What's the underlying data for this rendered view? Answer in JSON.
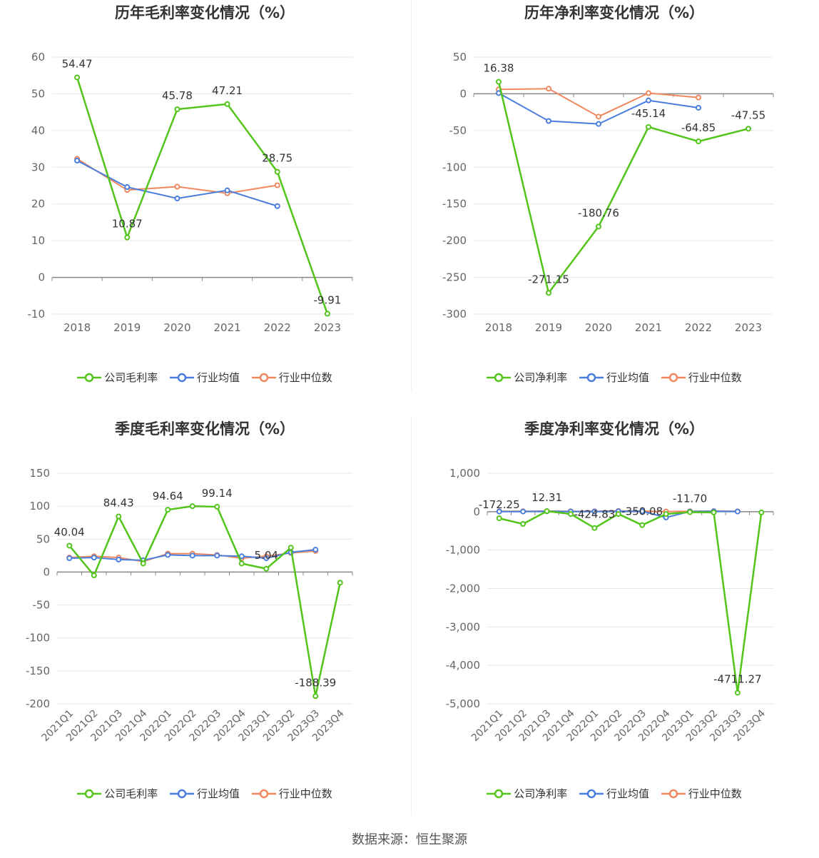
{
  "source": "数据来源：恒生聚源",
  "colors": {
    "company": "#52c41a",
    "avg": "#4a7ede",
    "median": "#f0885f",
    "grid": "#e6e6e6",
    "axis": "#888888",
    "label": "#666666"
  },
  "legend": {
    "company_gross": "公司毛利率",
    "company_net": "公司净利率",
    "avg": "行业均值",
    "median": "行业中位数"
  },
  "chart_data": [
    {
      "type": "line",
      "title": "历年毛利率变化情况（%）",
      "categories": [
        "2018",
        "2019",
        "2020",
        "2021",
        "2022",
        "2023"
      ],
      "ylim": [
        -10,
        60
      ],
      "yticks": [
        60,
        50,
        40,
        30,
        20,
        10,
        0,
        -10
      ],
      "series": [
        {
          "name": "公司毛利率",
          "values": [
            54.47,
            10.87,
            45.78,
            47.21,
            28.75,
            -9.91
          ],
          "labels": [
            "54.47",
            "10.87",
            "45.78",
            "47.21",
            "28.75",
            "-9.91"
          ]
        },
        {
          "name": "行业均值",
          "values": [
            31.8,
            24.6,
            21.5,
            23.7,
            19.4,
            null
          ]
        },
        {
          "name": "行业中位数",
          "values": [
            32.3,
            23.8,
            24.7,
            22.9,
            25.1,
            null
          ]
        }
      ]
    },
    {
      "type": "line",
      "title": "历年净利率变化情况（%）",
      "categories": [
        "2018",
        "2019",
        "2020",
        "2021",
        "2022",
        "2023"
      ],
      "ylim": [
        -300,
        50
      ],
      "yticks": [
        50,
        0,
        -50,
        -100,
        -150,
        -200,
        -250,
        -300
      ],
      "series": [
        {
          "name": "公司净利率",
          "values": [
            16.38,
            -271.15,
            -180.76,
            -45.14,
            -64.85,
            -47.55
          ],
          "labels": [
            "16.38",
            "-271.15",
            "-180.76",
            "-45.14",
            "-64.85",
            "-47.55"
          ]
        },
        {
          "name": "行业均值",
          "values": [
            1,
            -37,
            -41,
            -9,
            -19,
            null
          ]
        },
        {
          "name": "行业中位数",
          "values": [
            6,
            7,
            -31,
            1,
            -5,
            null
          ]
        }
      ]
    },
    {
      "type": "line",
      "title": "季度毛利率变化情况（%）",
      "categories": [
        "2021Q1",
        "2021Q2",
        "2021Q3",
        "2021Q4",
        "2022Q1",
        "2022Q2",
        "2022Q3",
        "2022Q4",
        "2023Q1",
        "2023Q2",
        "2023Q3",
        "2023Q4"
      ],
      "ylim": [
        -200,
        150
      ],
      "yticks": [
        150,
        100,
        50,
        0,
        -50,
        -100,
        -150,
        -200
      ],
      "series": [
        {
          "name": "公司毛利率",
          "values": [
            40.04,
            -5,
            84.43,
            13,
            94.64,
            100,
            99.14,
            13,
            5.04,
            37,
            -188.39,
            -16
          ],
          "labels": [
            "40.04",
            null,
            "84.43",
            null,
            "94.64",
            null,
            "99.14",
            null,
            "5.04",
            null,
            "-188.39",
            null
          ]
        },
        {
          "name": "行业均值",
          "values": [
            21,
            22,
            19,
            18,
            26,
            25,
            25,
            24,
            21,
            30,
            34,
            null
          ]
        },
        {
          "name": "行业中位数",
          "values": [
            22,
            24,
            22,
            16,
            28,
            28,
            26,
            21,
            24,
            29,
            32,
            null
          ]
        }
      ]
    },
    {
      "type": "line",
      "title": "季度净利率变化情况（%）",
      "categories": [
        "2021Q1",
        "2021Q2",
        "2021Q3",
        "2021Q4",
        "2022Q1",
        "2022Q2",
        "2022Q3",
        "2022Q4",
        "2023Q1",
        "2023Q2",
        "2023Q3",
        "2023Q4"
      ],
      "ylim": [
        -5000,
        1000
      ],
      "yticks": [
        1000,
        0,
        -1000,
        -2000,
        -3000,
        -4000,
        -5000
      ],
      "ytick_labels": [
        "1,000",
        "0",
        "-1,000",
        "-2,000",
        "-3,000",
        "-4,000",
        "-5,000"
      ],
      "series": [
        {
          "name": "公司净利率",
          "values": [
            -172.25,
            -320,
            12.31,
            -60,
            -424.83,
            -60,
            -350.08,
            -60,
            -11.7,
            -20,
            -4711.27,
            -20
          ],
          "labels": [
            "-172.25",
            null,
            "12.31",
            null,
            "-424.83",
            null,
            "-350.08",
            null,
            "-11.70",
            null,
            "-4711.27",
            null
          ]
        },
        {
          "name": "行业均值",
          "values": [
            5,
            5,
            10,
            5,
            5,
            10,
            10,
            -150,
            5,
            10,
            5,
            null
          ]
        },
        {
          "name": "行业中位数",
          "values": [
            10,
            10,
            15,
            10,
            10,
            20,
            15,
            5,
            10,
            15,
            10,
            null
          ]
        }
      ]
    }
  ]
}
